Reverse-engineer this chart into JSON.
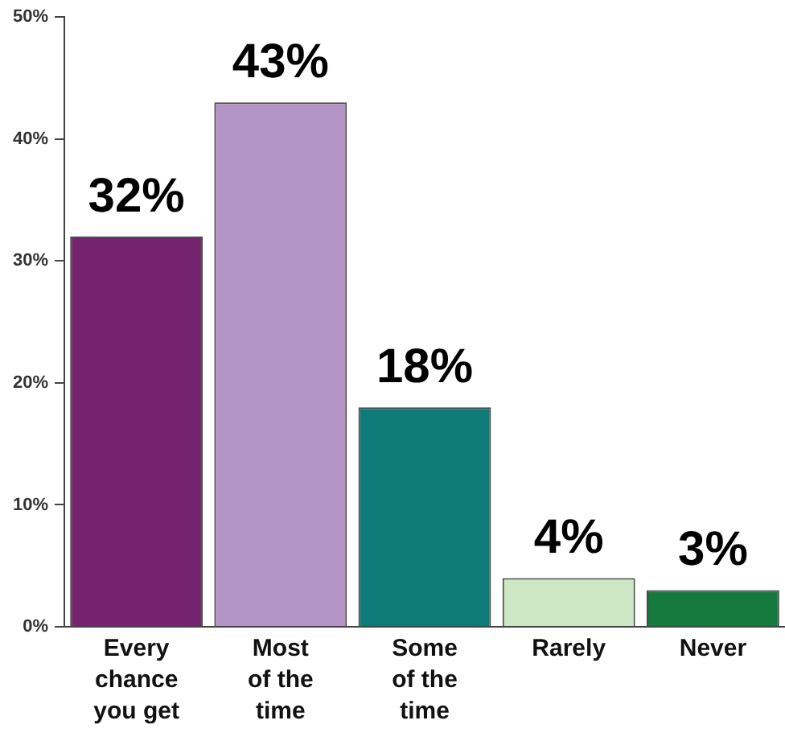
{
  "chart_data": {
    "type": "bar",
    "categories": [
      "Every\nchance\nyou get",
      "Most\nof the\ntime",
      "Some\nof the\ntime",
      "Rarely",
      "Never"
    ],
    "values": [
      32,
      43,
      18,
      4,
      3
    ],
    "colors": [
      "#76236f",
      "#b594c6",
      "#0f7b78",
      "#cde6c4",
      "#157a3d"
    ],
    "value_labels": [
      "32%",
      "43%",
      "18%",
      "4%",
      "3%"
    ],
    "ylim": [
      0,
      50
    ],
    "yticks": [
      {
        "value": 0,
        "label": "0%"
      },
      {
        "value": 10,
        "label": "10%"
      },
      {
        "value": 20,
        "label": "20%"
      },
      {
        "value": 30,
        "label": "30%"
      },
      {
        "value": 40,
        "label": "40%"
      },
      {
        "value": 50,
        "label": "50%"
      }
    ],
    "grid": false
  }
}
